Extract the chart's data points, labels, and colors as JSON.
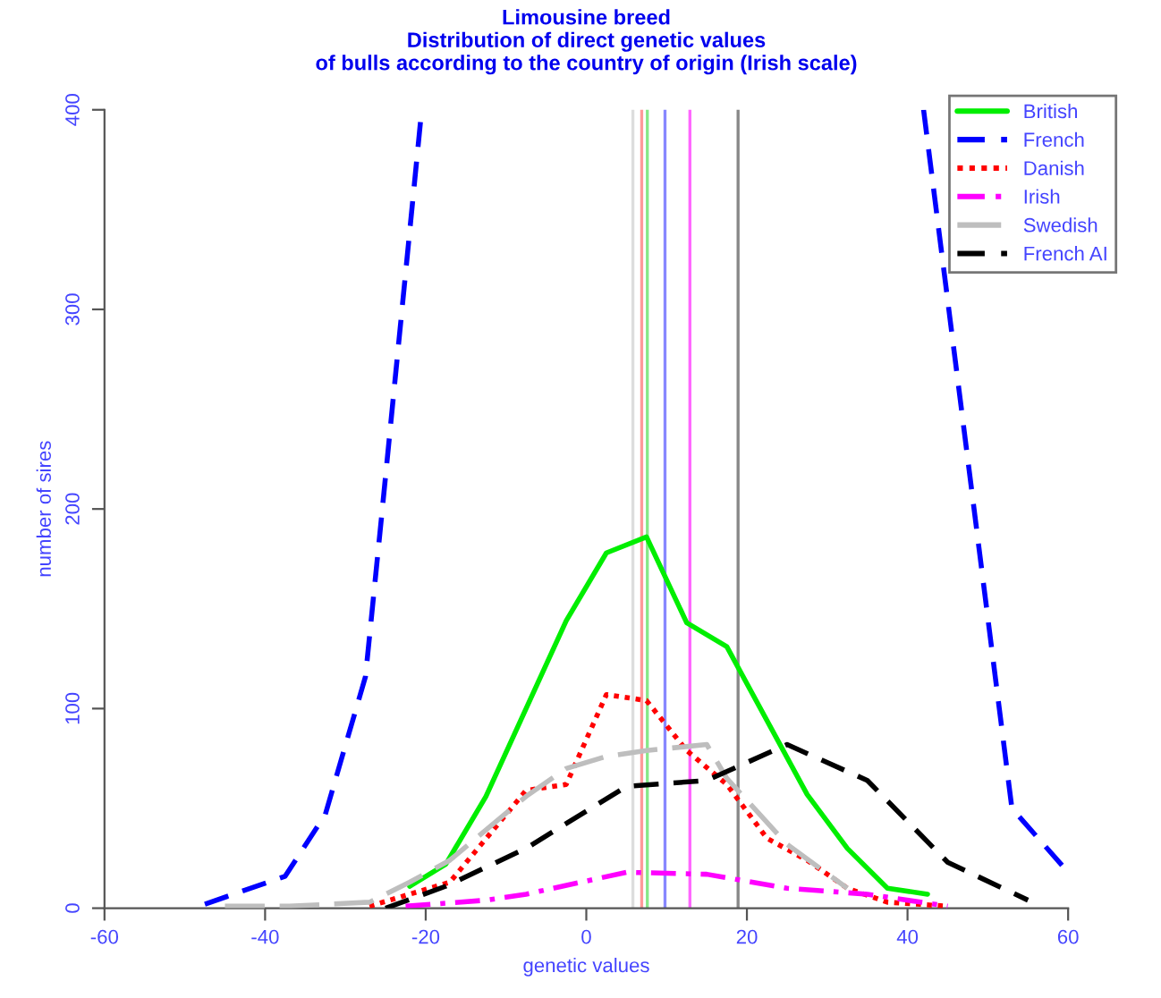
{
  "chart_data": {
    "type": "line",
    "title": "Limousine breed\nDistribution of direct genetic values\nof bulls according to the country of origin (Irish scale)",
    "xlabel": "genetic values",
    "ylabel": "number of sires",
    "xlim": [
      -60,
      60
    ],
    "ylim": [
      0,
      400
    ],
    "xticks": [
      -60,
      -40,
      -20,
      0,
      20,
      40,
      60
    ],
    "yticks": [
      0,
      100,
      200,
      300,
      400
    ],
    "grid": false,
    "legend": "top right",
    "marker": "none",
    "series": [
      {
        "name": "British",
        "color": "#00ee00",
        "line_style": "solid",
        "x": [
          -22,
          -17.5,
          -12.5,
          -2.5,
          2.5,
          7.5,
          12.5,
          17.5,
          27.5,
          32.5,
          37.5,
          42.5
        ],
        "values": [
          11,
          22,
          56,
          144,
          178,
          186,
          143,
          131,
          57,
          30,
          10,
          7
        ]
      },
      {
        "name": "French",
        "color": "#0000ff",
        "line_style": "dashed",
        "x": [
          -47.5,
          -42.5,
          -37.5,
          -32.5,
          -27.5,
          -25.5,
          -20.5,
          10,
          42,
          53,
          60
        ],
        "values": [
          2,
          9,
          16,
          47,
          116,
          196,
          400,
          null,
          400,
          50,
          18
        ]
      },
      {
        "name": "Danish",
        "color": "#ff0000",
        "line_style": "dotted",
        "x": [
          -27,
          -22,
          -17,
          -7.5,
          -2.5,
          2.5,
          7.5,
          12.5,
          17.5,
          22.5,
          27.5,
          32.5,
          37.5,
          45
        ],
        "values": [
          1,
          7,
          13,
          59,
          62,
          107,
          104,
          79,
          62,
          35,
          24,
          10,
          3,
          1
        ]
      },
      {
        "name": "Irish",
        "color": "#ff00ff",
        "line_style": "dashdot",
        "x": [
          -22.5,
          -12.5,
          -7.5,
          5,
          15,
          25,
          35,
          45
        ],
        "values": [
          1,
          4,
          7,
          18,
          17,
          10,
          7,
          1
        ]
      },
      {
        "name": "Swedish",
        "color": "#bebebe",
        "line_style": "longdash",
        "x": [
          -45,
          -37,
          -27,
          -22,
          -17,
          -7.5,
          -2.5,
          2.5,
          7.5,
          15,
          17.5,
          25,
          32.5
        ],
        "values": [
          1,
          1,
          3,
          13,
          24,
          56,
          70,
          76,
          79,
          82,
          65,
          32,
          10
        ]
      },
      {
        "name": "French AI",
        "color": "#000000",
        "line_style": "dashed",
        "x": [
          -25,
          -17.5,
          -7.5,
          5,
          15,
          25,
          35,
          45,
          55
        ],
        "values": [
          0,
          11,
          30,
          61,
          64,
          82,
          64,
          23,
          4
        ]
      }
    ],
    "ref_lines": [
      {
        "axis": "x",
        "value": 5.8,
        "color": "#dddddd"
      },
      {
        "axis": "x",
        "value": 6.9,
        "color": "#ff9999"
      },
      {
        "axis": "x",
        "value": 7.6,
        "color": "#88e888"
      },
      {
        "axis": "x",
        "value": 9.8,
        "color": "#8888ff"
      },
      {
        "axis": "x",
        "value": 12.9,
        "color": "#ff66ff"
      },
      {
        "axis": "x",
        "value": 18.9,
        "color": "#888888"
      }
    ]
  }
}
